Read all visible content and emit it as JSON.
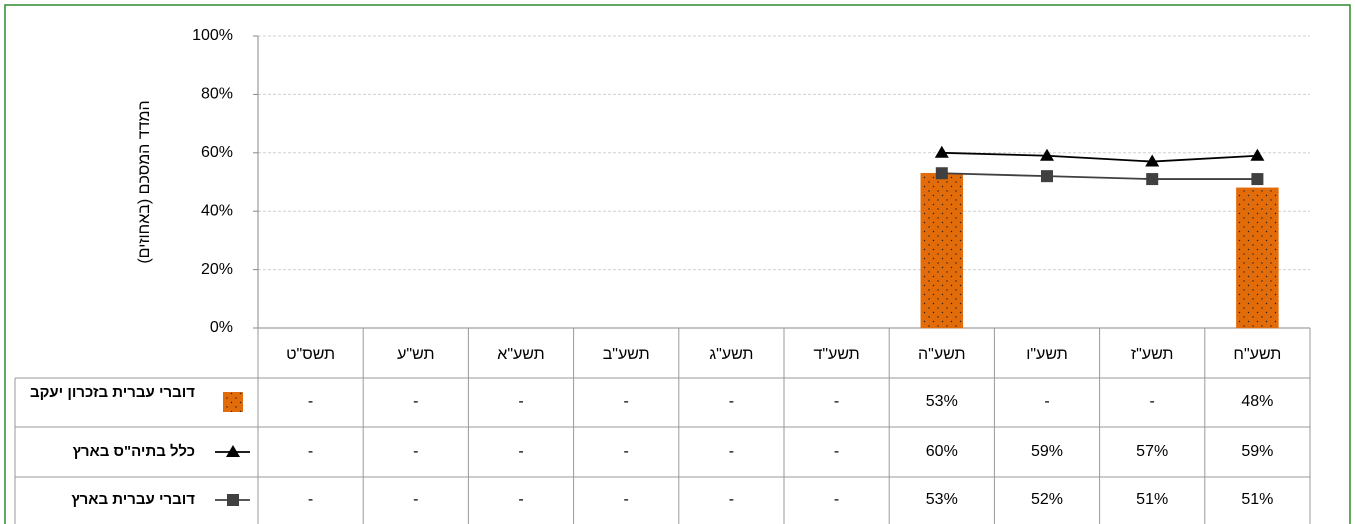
{
  "chart_data": {
    "type": "bar-line-table",
    "y_axis_label": "המדד המסכם (באחוזים)",
    "categories": [
      "תשס\"ט",
      "תש\"ע",
      "תשע\"א",
      "תשע\"ב",
      "תשע\"ג",
      "תשע\"ד",
      "תשע\"ה",
      "תשע\"ו",
      "תשע\"ז",
      "תשע\"ח"
    ],
    "ylim": [
      0,
      100
    ],
    "yticks": [
      {
        "value": 0,
        "label": "0%"
      },
      {
        "value": 20,
        "label": "20%"
      },
      {
        "value": 40,
        "label": "40%"
      },
      {
        "value": 60,
        "label": "60%"
      },
      {
        "value": 80,
        "label": "80%"
      },
      {
        "value": 100,
        "label": "100%"
      }
    ],
    "grid": true,
    "series": [
      {
        "name": "דוברי עברית בזכרון יעקב",
        "type": "bar",
        "color": "#e36c0a",
        "values": [
          null,
          null,
          null,
          null,
          null,
          null,
          53,
          null,
          null,
          48
        ],
        "value_labels": [
          "-",
          "-",
          "-",
          "-",
          "-",
          "-",
          "53%",
          "-",
          "-",
          "48%"
        ]
      },
      {
        "name": "כלל בתיה\"ס בארץ",
        "type": "line",
        "marker": "triangle",
        "color": "#000000",
        "values": [
          null,
          null,
          null,
          null,
          null,
          null,
          60,
          59,
          57,
          59
        ],
        "value_labels": [
          "-",
          "-",
          "-",
          "-",
          "-",
          "-",
          "60%",
          "59%",
          "57%",
          "59%"
        ]
      },
      {
        "name": "דוברי עברית בארץ",
        "type": "line",
        "marker": "square",
        "color": "#404040",
        "values": [
          null,
          null,
          null,
          null,
          null,
          null,
          53,
          52,
          51,
          51
        ],
        "value_labels": [
          "-",
          "-",
          "-",
          "-",
          "-",
          "-",
          "53%",
          "52%",
          "51%",
          "51%"
        ]
      }
    ]
  }
}
